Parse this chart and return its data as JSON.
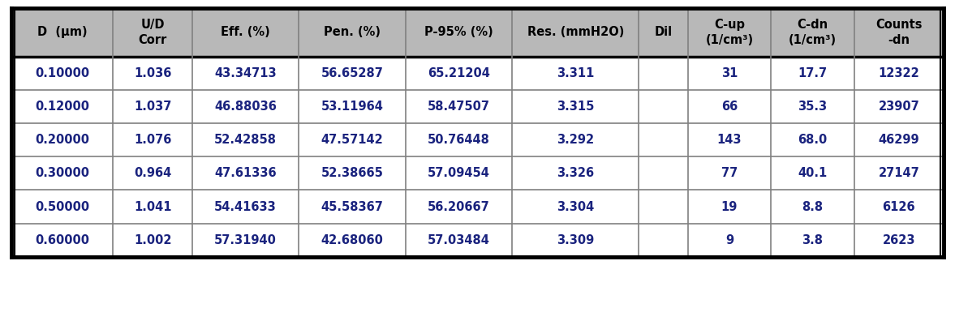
{
  "headers": [
    "D  (μm)",
    "U/D\nCorr",
    "Eff. (%)",
    "Pen. (%)",
    "P-95% (%)",
    "Res. (mmH2O)",
    "Dil",
    "C-up\n(1/cm³)",
    "C-dn\n(1/cm³)",
    "Counts\n-dn"
  ],
  "rows": [
    [
      "0.10000",
      "1.036",
      "43.34713",
      "56.65287",
      "65.21204",
      "3.311",
      "",
      "31",
      "17.7",
      "12322"
    ],
    [
      "0.12000",
      "1.037",
      "46.88036",
      "53.11964",
      "58.47507",
      "3.315",
      "",
      "66",
      "35.3",
      "23907"
    ],
    [
      "0.20000",
      "1.076",
      "52.42858",
      "47.57142",
      "50.76448",
      "3.292",
      "",
      "143",
      "68.0",
      "46299"
    ],
    [
      "0.30000",
      "0.964",
      "47.61336",
      "52.38665",
      "57.09454",
      "3.326",
      "",
      "77",
      "40.1",
      "27147"
    ],
    [
      "0.50000",
      "1.041",
      "54.41633",
      "45.58367",
      "56.20667",
      "3.304",
      "",
      "19",
      "8.8",
      "6126"
    ],
    [
      "0.60000",
      "1.002",
      "57.31940",
      "42.68060",
      "57.03484",
      "3.309",
      "",
      "9",
      "3.8",
      "2623"
    ]
  ],
  "header_bg": "#b8b8b8",
  "header_text_color": "#000000",
  "data_text_color": "#1a237e",
  "outer_border_color": "#000000",
  "inner_border_color": "#808080",
  "bg_color": "#ffffff",
  "col_widths": [
    1.0,
    0.78,
    1.05,
    1.05,
    1.05,
    1.25,
    0.48,
    0.82,
    0.82,
    0.88
  ],
  "header_fontsize": 10.5,
  "data_fontsize": 10.5,
  "fig_width": 11.77,
  "fig_height": 3.96
}
